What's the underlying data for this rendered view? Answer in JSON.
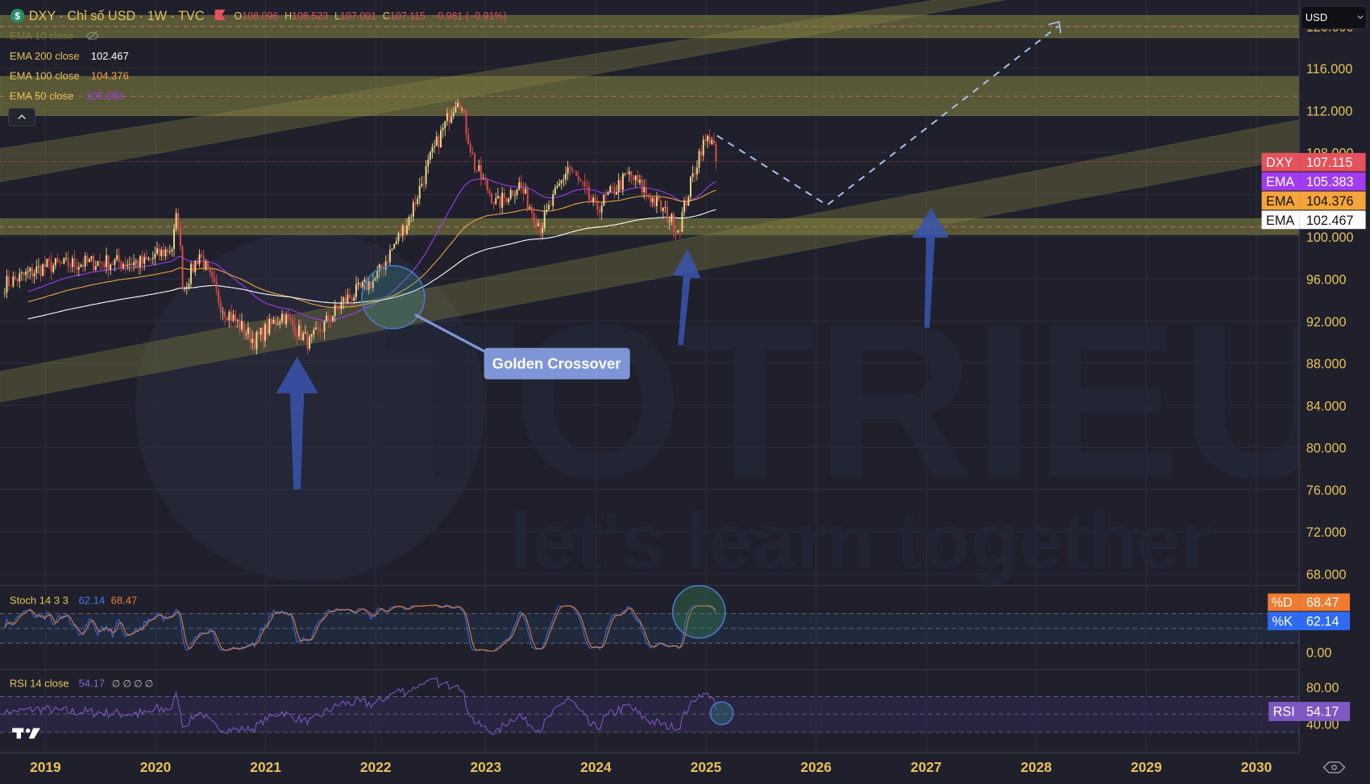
{
  "header": {
    "symbol_icon": "dollar-icon",
    "title": "DXY · Chỉ số USD · 1W · TVC",
    "flag_icon": "flag-icon",
    "o_label": "O",
    "o_value": "108.096",
    "h_label": "H",
    "h_value": "108.523",
    "l_label": "L",
    "l_value": "107.001",
    "c_label": "C",
    "c_value": "107.115",
    "change": "−0.981 (−0.91%)"
  },
  "legend": {
    "ema10": {
      "label": "EMA 10 close",
      "icon": "eye-off-icon"
    },
    "ema200": {
      "label": "EMA 200 close",
      "value": "102.467"
    },
    "ema100": {
      "label": "EMA 100 close",
      "value": "104.376"
    },
    "ema50": {
      "label": "EMA 50 close",
      "value": "105.383"
    },
    "collapse_icon": "chevron-up-icon"
  },
  "currency_select": "USD",
  "price_axis": [
    "120.000",
    "116.000",
    "112.000",
    "108.000",
    "100.000",
    "96.000",
    "92.000",
    "88.000",
    "84.000",
    "80.000",
    "76.000",
    "72.000",
    "68.000"
  ],
  "price_tags": [
    {
      "label": "DXY",
      "value": "107.115",
      "color": "#e5525b"
    },
    {
      "label": "EMA",
      "value": "105.383",
      "color": "#a13cf2"
    },
    {
      "label": "EMA",
      "value": "104.376",
      "color": "#f5a43b"
    },
    {
      "label": "EMA",
      "value": "102.467",
      "color": "#ffffff"
    }
  ],
  "annotation": {
    "golden_crossover": "Golden Crossover"
  },
  "watermark": {
    "brand": "TOTRIEU",
    "tagline": "let's learn together"
  },
  "stoch": {
    "label": "Stoch 14 3 3",
    "k_value": "62.14",
    "d_value": "68.47",
    "axis": [
      "0.00"
    ],
    "tags": [
      {
        "label": "%D",
        "value": "68.47",
        "color": "#f07a2e"
      },
      {
        "label": "%K",
        "value": "62.14",
        "color": "#2f6bf0"
      }
    ]
  },
  "rsi": {
    "label": "RSI 14 close",
    "value": "54.17",
    "extras": "∅ ∅ ∅ ∅",
    "axis": [
      "80.00",
      "40.00"
    ],
    "tag": {
      "label": "RSI",
      "value": "54.17",
      "color": "#7e57c2"
    }
  },
  "time_axis": [
    "2019",
    "2020",
    "2021",
    "2022",
    "2023",
    "2024",
    "2025",
    "2026",
    "2027",
    "2028",
    "2029",
    "2030"
  ],
  "settings_icon": "gear-icon",
  "logo": "TV",
  "colors": {
    "up": "#efd98a",
    "down": "#e04a4a",
    "ema50": "#a13cf2",
    "ema100": "#f5a43b",
    "ema200": "#ffffff",
    "zone": "#8a8640",
    "accent": "#e8c15a"
  },
  "chart_data": {
    "type": "candlestick",
    "interval": "1W",
    "price_path": [
      [
        2018.63,
        95.5
      ],
      [
        2019.0,
        97.2
      ],
      [
        2019.5,
        97.6
      ],
      [
        2019.9,
        97.5
      ],
      [
        2020.15,
        99.0
      ],
      [
        2020.2,
        102.5
      ],
      [
        2020.25,
        95.0
      ],
      [
        2020.4,
        98.4
      ],
      [
        2020.6,
        93.4
      ],
      [
        2020.9,
        90.1
      ],
      [
        2021.15,
        92.6
      ],
      [
        2021.4,
        89.9
      ],
      [
        2021.7,
        93.8
      ],
      [
        2022.0,
        96.0
      ],
      [
        2022.3,
        101.7
      ],
      [
        2022.5,
        107.5
      ],
      [
        2022.75,
        113.5
      ],
      [
        2022.9,
        106.7
      ],
      [
        2023.1,
        103.0
      ],
      [
        2023.3,
        105.0
      ],
      [
        2023.5,
        100.9
      ],
      [
        2023.75,
        106.7
      ],
      [
        2024.0,
        102.6
      ],
      [
        2024.3,
        105.9
      ],
      [
        2024.6,
        102.6
      ],
      [
        2024.75,
        100.7
      ],
      [
        2024.95,
        108.4
      ],
      [
        2025.05,
        109.6
      ],
      [
        2025.1,
        107.1
      ]
    ],
    "forecast_path": [
      [
        2025.1,
        109.6
      ],
      [
        2026.1,
        103.0
      ],
      [
        2028.2,
        120.0
      ]
    ],
    "zones": [
      [
        118.9,
        121.0
      ],
      [
        111.5,
        115.2
      ],
      [
        100.2,
        101.7
      ]
    ],
    "ema_periods": [
      50,
      100,
      200
    ],
    "ylim": [
      66,
      122
    ],
    "xlim": [
      2018.6,
      2030.4
    ]
  }
}
